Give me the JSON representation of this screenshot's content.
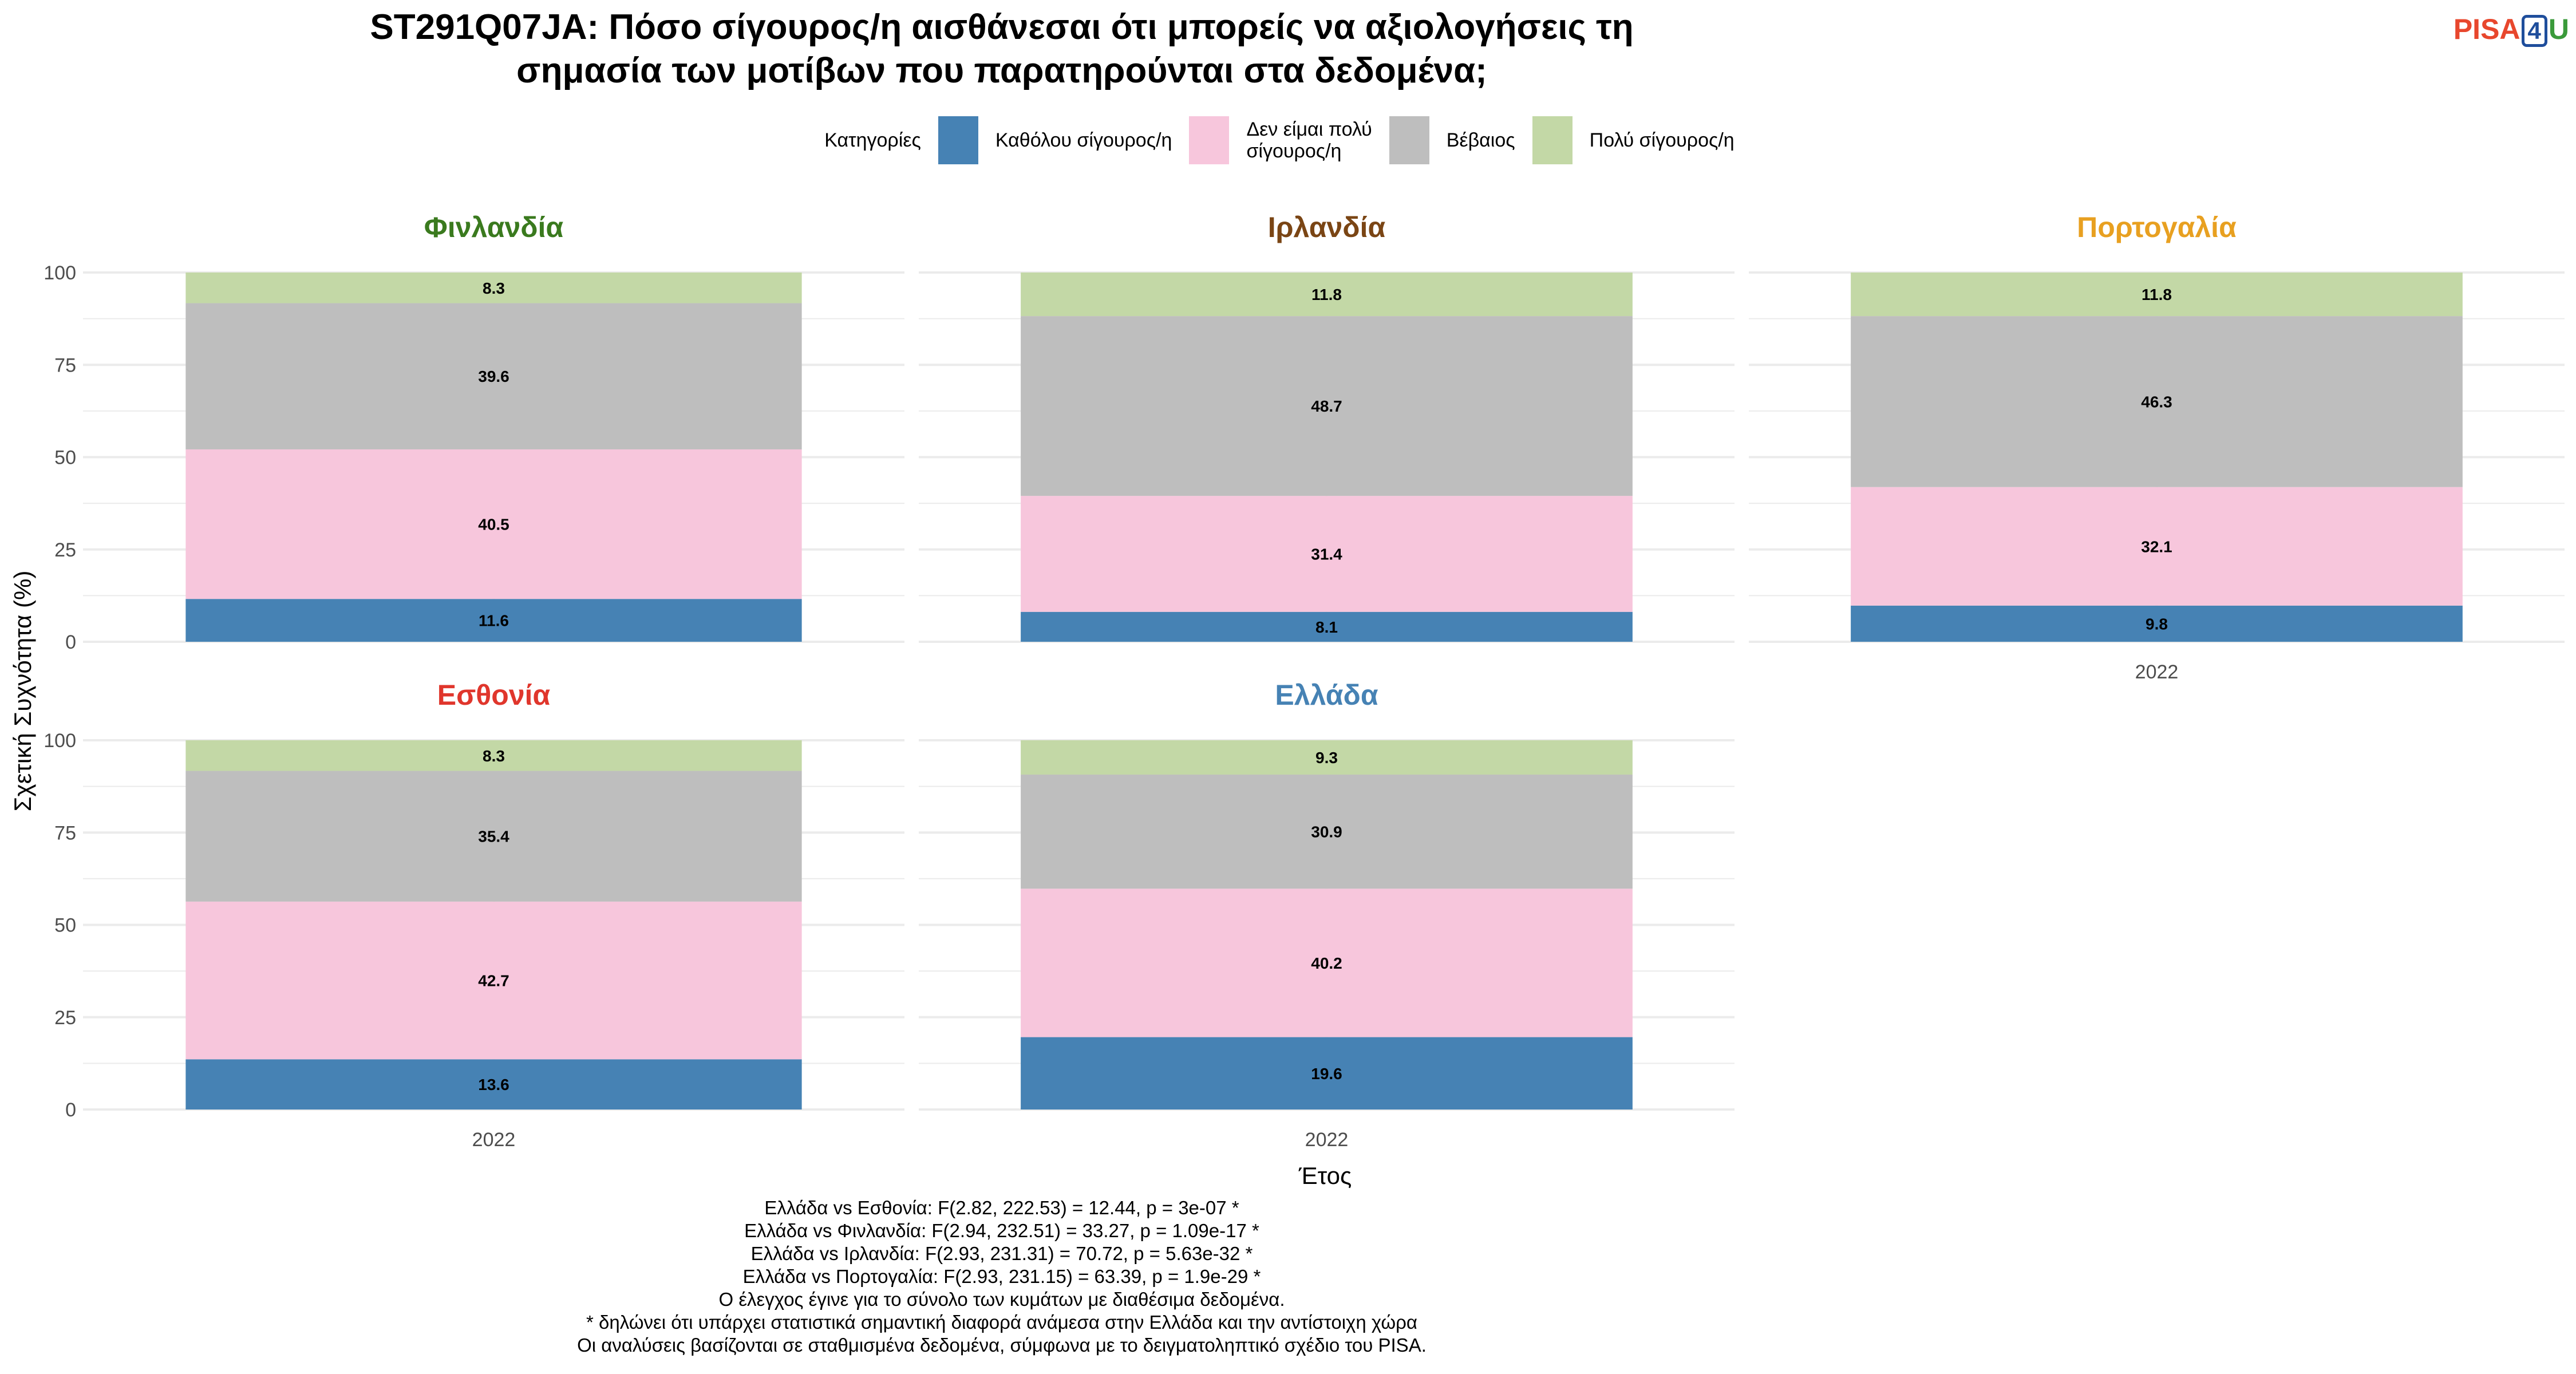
{
  "title_lines": [
    "ST291Q07JA: Πόσο σίγουρος/η αισθάνεσαι ότι μπορείς να αξιολογήσεις τη",
    "σημασία των μοτίβων που παρατηρούνται στα δεδομένα;"
  ],
  "logo": {
    "part1": "PISA",
    "part2": "4",
    "part3": "U"
  },
  "legend": {
    "title": "Κατηγορίες",
    "items": [
      {
        "label": "Καθόλου σίγουρος/η",
        "color": "#4682b4"
      },
      {
        "label": "Δεν είμαι πολύ\nσίγουρος/η",
        "color": "#f7c6dc"
      },
      {
        "label": "Βέβαιος",
        "color": "#bebebe"
      },
      {
        "label": "Πολύ σίγουρος/η",
        "color": "#c3d8a6"
      }
    ]
  },
  "notes": [
    "Ελλάδα vs Εσθονία: F(2.82, 222.53) = 12.44, p = 3e-07 *",
    "Ελλάδα vs Φινλανδία: F(2.94, 232.51) = 33.27, p = 1.09e-17 *",
    "Ελλάδα vs Ιρλανδία: F(2.93, 231.31) = 70.72, p = 5.63e-32 *",
    "Ελλάδα vs Πορτογαλία: F(2.93, 231.15) = 63.39, p = 1.9e-29 *",
    "Ο έλεγχος έγινε για το σύνολο των κυμάτων με διαθέσιμα δεδομένα.",
    "* δηλώνει ότι υπάρχει στατιστικά σημαντική διαφορά ανάμεσα στην Ελλάδα και την αντίστοιχη χώρα",
    "Οι αναλύσεις βασίζονται σε σταθμισμένα δεδομένα, σύμφωνα με το δειγματοληπτικό σχέδιο του PISA."
  ],
  "chart_data": {
    "type": "bar",
    "stacked": true,
    "xlabel": "Έτος",
    "ylabel": "Σχετική Συχνότητα (%)",
    "ylim": [
      0,
      100
    ],
    "yticks": [
      0,
      25,
      50,
      75,
      100
    ],
    "categories": [
      "2022"
    ],
    "facets": [
      {
        "name": "Φινλανδία",
        "color": "#3a7a1e",
        "values": [
          11.6,
          40.5,
          39.6,
          8.3
        ]
      },
      {
        "name": "Ιρλανδία",
        "color": "#7a4514",
        "values": [
          8.1,
          31.4,
          48.7,
          11.8
        ]
      },
      {
        "name": "Πορτογαλία",
        "color": "#e8a020",
        "values": [
          9.8,
          32.1,
          46.3,
          11.8
        ]
      },
      {
        "name": "Εσθονία",
        "color": "#e0362c",
        "values": [
          13.6,
          42.7,
          35.4,
          8.3
        ]
      },
      {
        "name": "Ελλάδα",
        "color": "#4682b4",
        "values": [
          19.6,
          40.2,
          30.9,
          9.3
        ]
      }
    ],
    "series": [
      "Καθόλου σίγουρος/η",
      "Δεν είμαι πολύ σίγουρος/η",
      "Βέβαιος",
      "Πολύ σίγουρος/η"
    ],
    "grid": true,
    "legend_position": "top"
  }
}
